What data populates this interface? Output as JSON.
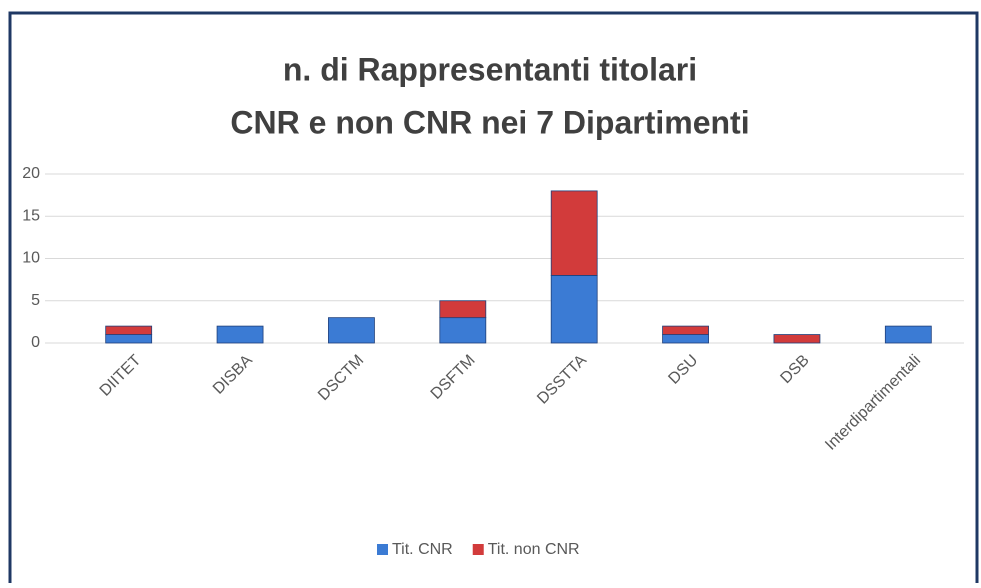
{
  "chart_data": {
    "type": "stacked_bar",
    "title": [
      "n. di Rappresentanti titolari",
      "CNR e non CNR nei 7 Dipartimenti"
    ],
    "categories": [
      "DIITET",
      "DISBA",
      "DSCTM",
      "DSFTM",
      "DSSTTA",
      "DSU",
      "DSB",
      "Interdipartimentali"
    ],
    "series": [
      {
        "name": "Tit. CNR",
        "color": "#3b7bd4",
        "values": [
          1,
          2,
          3,
          3,
          8,
          1,
          0,
          2
        ]
      },
      {
        "name": "Tit. non CNR",
        "color": "#d23b3b",
        "values": [
          1,
          0,
          0,
          2,
          10,
          1,
          1,
          0
        ]
      }
    ],
    "ylim": [
      0,
      20
    ],
    "yticks": [
      0,
      5,
      10,
      15,
      20
    ],
    "grid": true,
    "legend": "bottom"
  }
}
